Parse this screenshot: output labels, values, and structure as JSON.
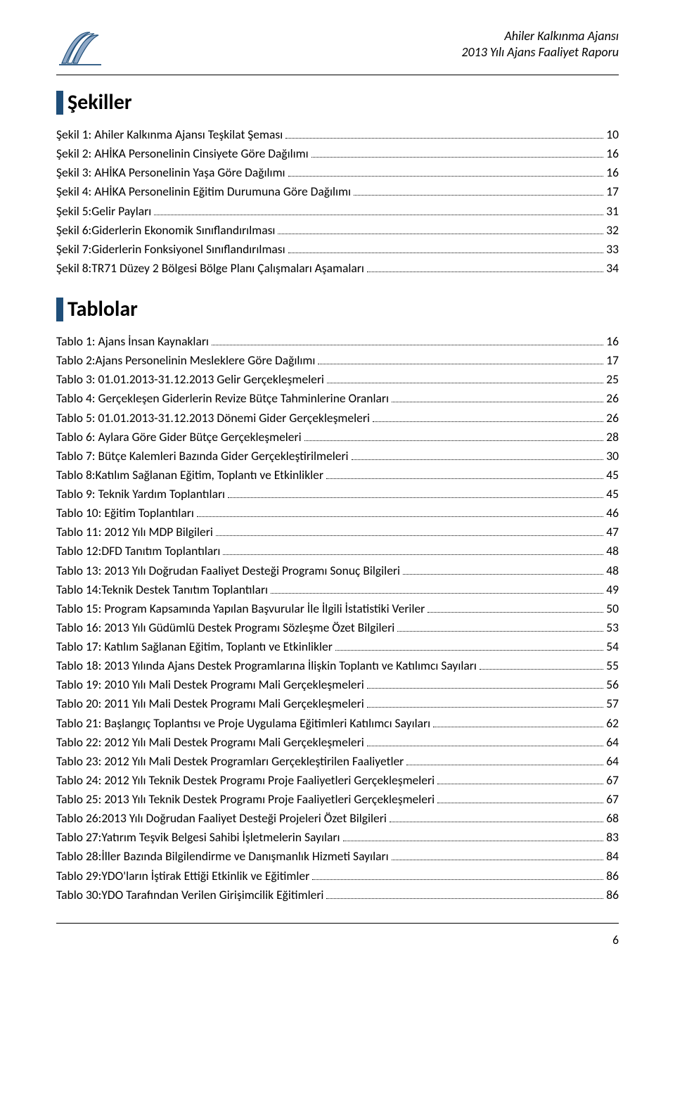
{
  "header": {
    "org": "Ahiler Kalkınma Ajansı",
    "report": "2013 Yılı Ajans Faaliyet Raporu",
    "logo_stroke": "#1f4e79",
    "logo_fill": "#8fa9c7"
  },
  "sections": [
    {
      "title": "Şekiller",
      "entries": [
        {
          "label": "Şekil 1: Ahiler Kalkınma Ajansı Teşkilat Şeması",
          "page": "10"
        },
        {
          "label": "Şekil 2:  AHİKA Personelinin Cinsiyete Göre Dağılımı",
          "page": "16"
        },
        {
          "label": "Şekil 3: AHİKA Personelinin Yaşa Göre Dağılımı",
          "page": "16"
        },
        {
          "label": "Şekil 4: AHİKA Personelinin Eğitim Durumuna Göre Dağılımı",
          "page": "17"
        },
        {
          "label": "Şekil 5:Gelir Payları",
          "page": "31"
        },
        {
          "label": "Şekil 6:Giderlerin Ekonomik Sınıflandırılması",
          "page": "32"
        },
        {
          "label": "Şekil 7:Giderlerin Fonksiyonel Sınıflandırılması",
          "page": "33"
        },
        {
          "label": "Şekil 8:TR71 Düzey 2 Bölgesi Bölge Planı Çalışmaları Aşamaları",
          "page": "34"
        }
      ]
    },
    {
      "title": "Tablolar",
      "entries": [
        {
          "label": "Tablo 1: Ajans İnsan Kaynakları",
          "page": "16"
        },
        {
          "label": "Tablo 2:Ajans Personelinin Mesleklere Göre Dağılımı",
          "page": "17"
        },
        {
          "label": "Tablo 3: 01.01.2013-31.12.2013 Gelir Gerçekleşmeleri",
          "page": "25"
        },
        {
          "label": "Tablo 4: Gerçekleşen Giderlerin Revize Bütçe Tahminlerine Oranları",
          "page": "26"
        },
        {
          "label": "Tablo 5: 01.01.2013-31.12.2013 Dönemi Gider Gerçekleşmeleri",
          "page": "26"
        },
        {
          "label": "Tablo 6: Aylara Göre Gider Bütçe Gerçekleşmeleri",
          "page": "28"
        },
        {
          "label": "Tablo 7: Bütçe Kalemleri Bazında Gider Gerçekleştirilmeleri",
          "page": "30"
        },
        {
          "label": "Tablo 8:Katılım Sağlanan Eğitim, Toplantı ve Etkinlikler",
          "page": "45"
        },
        {
          "label": "Tablo 9: Teknik Yardım Toplantıları",
          "page": "45"
        },
        {
          "label": "Tablo 10: Eğitim Toplantıları",
          "page": "46"
        },
        {
          "label": "Tablo 11: 2012 Yılı MDP Bilgileri",
          "page": "47"
        },
        {
          "label": "Tablo 12:DFD Tanıtım Toplantıları",
          "page": "48"
        },
        {
          "label": "Tablo 13: 2013 Yılı Doğrudan Faaliyet Desteği Programı Sonuç Bilgileri",
          "page": "48"
        },
        {
          "label": "Tablo 14:Teknik Destek Tanıtım Toplantıları",
          "page": "49"
        },
        {
          "label": "Tablo 15: Program Kapsamında Yapılan Başvurular İle İlgili İstatistiki Veriler",
          "page": "50"
        },
        {
          "label": "Tablo 16: 2013 Yılı Güdümlü Destek Programı Sözleşme Özet Bilgileri",
          "page": "53"
        },
        {
          "label": "Tablo 17: Katılım Sağlanan Eğitim, Toplantı ve Etkinlikler",
          "page": "54"
        },
        {
          "label": "Tablo 18: 2013 Yılında Ajans Destek Programlarına İlişkin Toplantı ve Katılımcı Sayıları",
          "page": "55"
        },
        {
          "label": "Tablo 19: 2010 Yılı Mali Destek Programı Mali Gerçekleşmeleri",
          "page": "56"
        },
        {
          "label": "Tablo 20: 2011 Yılı Mali Destek Programı Mali Gerçekleşmeleri",
          "page": "57"
        },
        {
          "label": "Tablo 21: Başlangıç Toplantısı ve Proje Uygulama Eğitimleri Katılımcı Sayıları",
          "page": "62"
        },
        {
          "label": "Tablo 22: 2012 Yılı Mali Destek Programı Mali Gerçekleşmeleri",
          "page": "64"
        },
        {
          "label": "Tablo 23: 2012 Yılı  Mali Destek Programları Gerçekleştirilen Faaliyetler",
          "page": "64"
        },
        {
          "label": "Tablo 24: 2012 Yılı Teknik Destek Programı Proje Faaliyetleri Gerçekleşmeleri",
          "page": "67"
        },
        {
          "label": "Tablo 25: 2013 Yılı Teknik Destek Programı Proje Faaliyetleri Gerçekleşmeleri",
          "page": "67"
        },
        {
          "label": "Tablo 26:2013 Yılı Doğrudan Faaliyet Desteği Projeleri Özet Bilgileri",
          "page": "68"
        },
        {
          "label": "Tablo 27:Yatırım Teşvik Belgesi Sahibi İşletmelerin Sayıları",
          "page": "83"
        },
        {
          "label": "Tablo 28:İller Bazında Bilgilendirme ve Danışmanlık Hizmeti Sayıları",
          "page": "84"
        },
        {
          "label": "Tablo 29:YDO'ların İştirak Ettiği Etkinlik ve Eğitimler",
          "page": "86"
        },
        {
          "label": "Tablo 30:YDO Tarafından Verilen Girişimcilik Eğitimleri",
          "page": "86"
        }
      ]
    }
  ],
  "page_number": "6"
}
